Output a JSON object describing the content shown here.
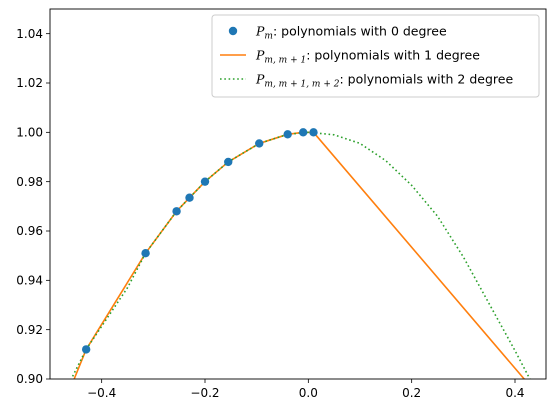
{
  "chart_data": {
    "type": "line",
    "title": "",
    "xlabel": "",
    "ylabel": "",
    "xlim": [
      -0.5,
      0.46
    ],
    "ylim": [
      0.9,
      1.05
    ],
    "grid": false,
    "legend_position": "top-right",
    "x_ticks": [
      {
        "value": -0.4,
        "label": "−0.4"
      },
      {
        "value": -0.2,
        "label": "−0.2"
      },
      {
        "value": 0.0,
        "label": "0.0"
      },
      {
        "value": 0.2,
        "label": "0.2"
      },
      {
        "value": 0.4,
        "label": "0.4"
      }
    ],
    "y_ticks": [
      {
        "value": 0.9,
        "label": "0.90"
      },
      {
        "value": 0.92,
        "label": "0.92"
      },
      {
        "value": 0.94,
        "label": "0.94"
      },
      {
        "value": 0.96,
        "label": "0.96"
      },
      {
        "value": 0.98,
        "label": "0.98"
      },
      {
        "value": 1.0,
        "label": "1.00"
      },
      {
        "value": 1.02,
        "label": "1.02"
      },
      {
        "value": 1.04,
        "label": "1.04"
      }
    ],
    "series": [
      {
        "name": "P_m: polynomials with 0 degree",
        "legend": {
          "symbol": "P",
          "sub": "m",
          "text": ": polynomials with 0 degree"
        },
        "kind": "scatter",
        "color": "#1f77b4",
        "x": [
          -0.43,
          -0.315,
          -0.255,
          -0.23,
          -0.2,
          -0.155,
          -0.095,
          -0.04,
          -0.01,
          0.01
        ],
        "y": [
          0.912,
          0.951,
          0.968,
          0.9735,
          0.98,
          0.988,
          0.9955,
          0.9992,
          1.0,
          1.0
        ]
      },
      {
        "name": "P_{m,m+1}: polynomials with 1 degree",
        "legend": {
          "symbol": "P",
          "sub": "m, m + 1",
          "text": ": polynomials with 1 degree"
        },
        "kind": "line",
        "dash": "solid",
        "color": "#ff7f0e",
        "x": [
          -0.46,
          -0.43,
          -0.315,
          -0.255,
          -0.23,
          -0.2,
          -0.155,
          -0.095,
          -0.04,
          -0.01,
          0.01,
          0.43
        ],
        "y": [
          0.8965,
          0.912,
          0.951,
          0.968,
          0.9735,
          0.98,
          0.988,
          0.9955,
          0.9992,
          1.0,
          1.0,
          0.897
        ]
      },
      {
        "name": "P_{m,m+1,m+2}: polynomials with 2 degree",
        "legend": {
          "symbol": "P",
          "sub": "m, m + 1, m + 2",
          "text": ": polynomials with 2 degree"
        },
        "kind": "line",
        "dash": "dotted",
        "color": "#2ca02c",
        "x": [
          -0.46,
          -0.43,
          -0.35,
          -0.315,
          -0.255,
          -0.2,
          -0.155,
          -0.095,
          -0.04,
          0.0,
          0.05,
          0.1,
          0.15,
          0.2,
          0.25,
          0.3,
          0.35,
          0.4,
          0.46
        ],
        "y": [
          0.8995,
          0.912,
          0.937,
          0.951,
          0.968,
          0.98,
          0.988,
          0.9955,
          0.9992,
          1.0,
          0.999,
          0.9955,
          0.9885,
          0.9785,
          0.966,
          0.9495,
          0.9305,
          0.9115,
          0.8875
        ]
      }
    ]
  }
}
